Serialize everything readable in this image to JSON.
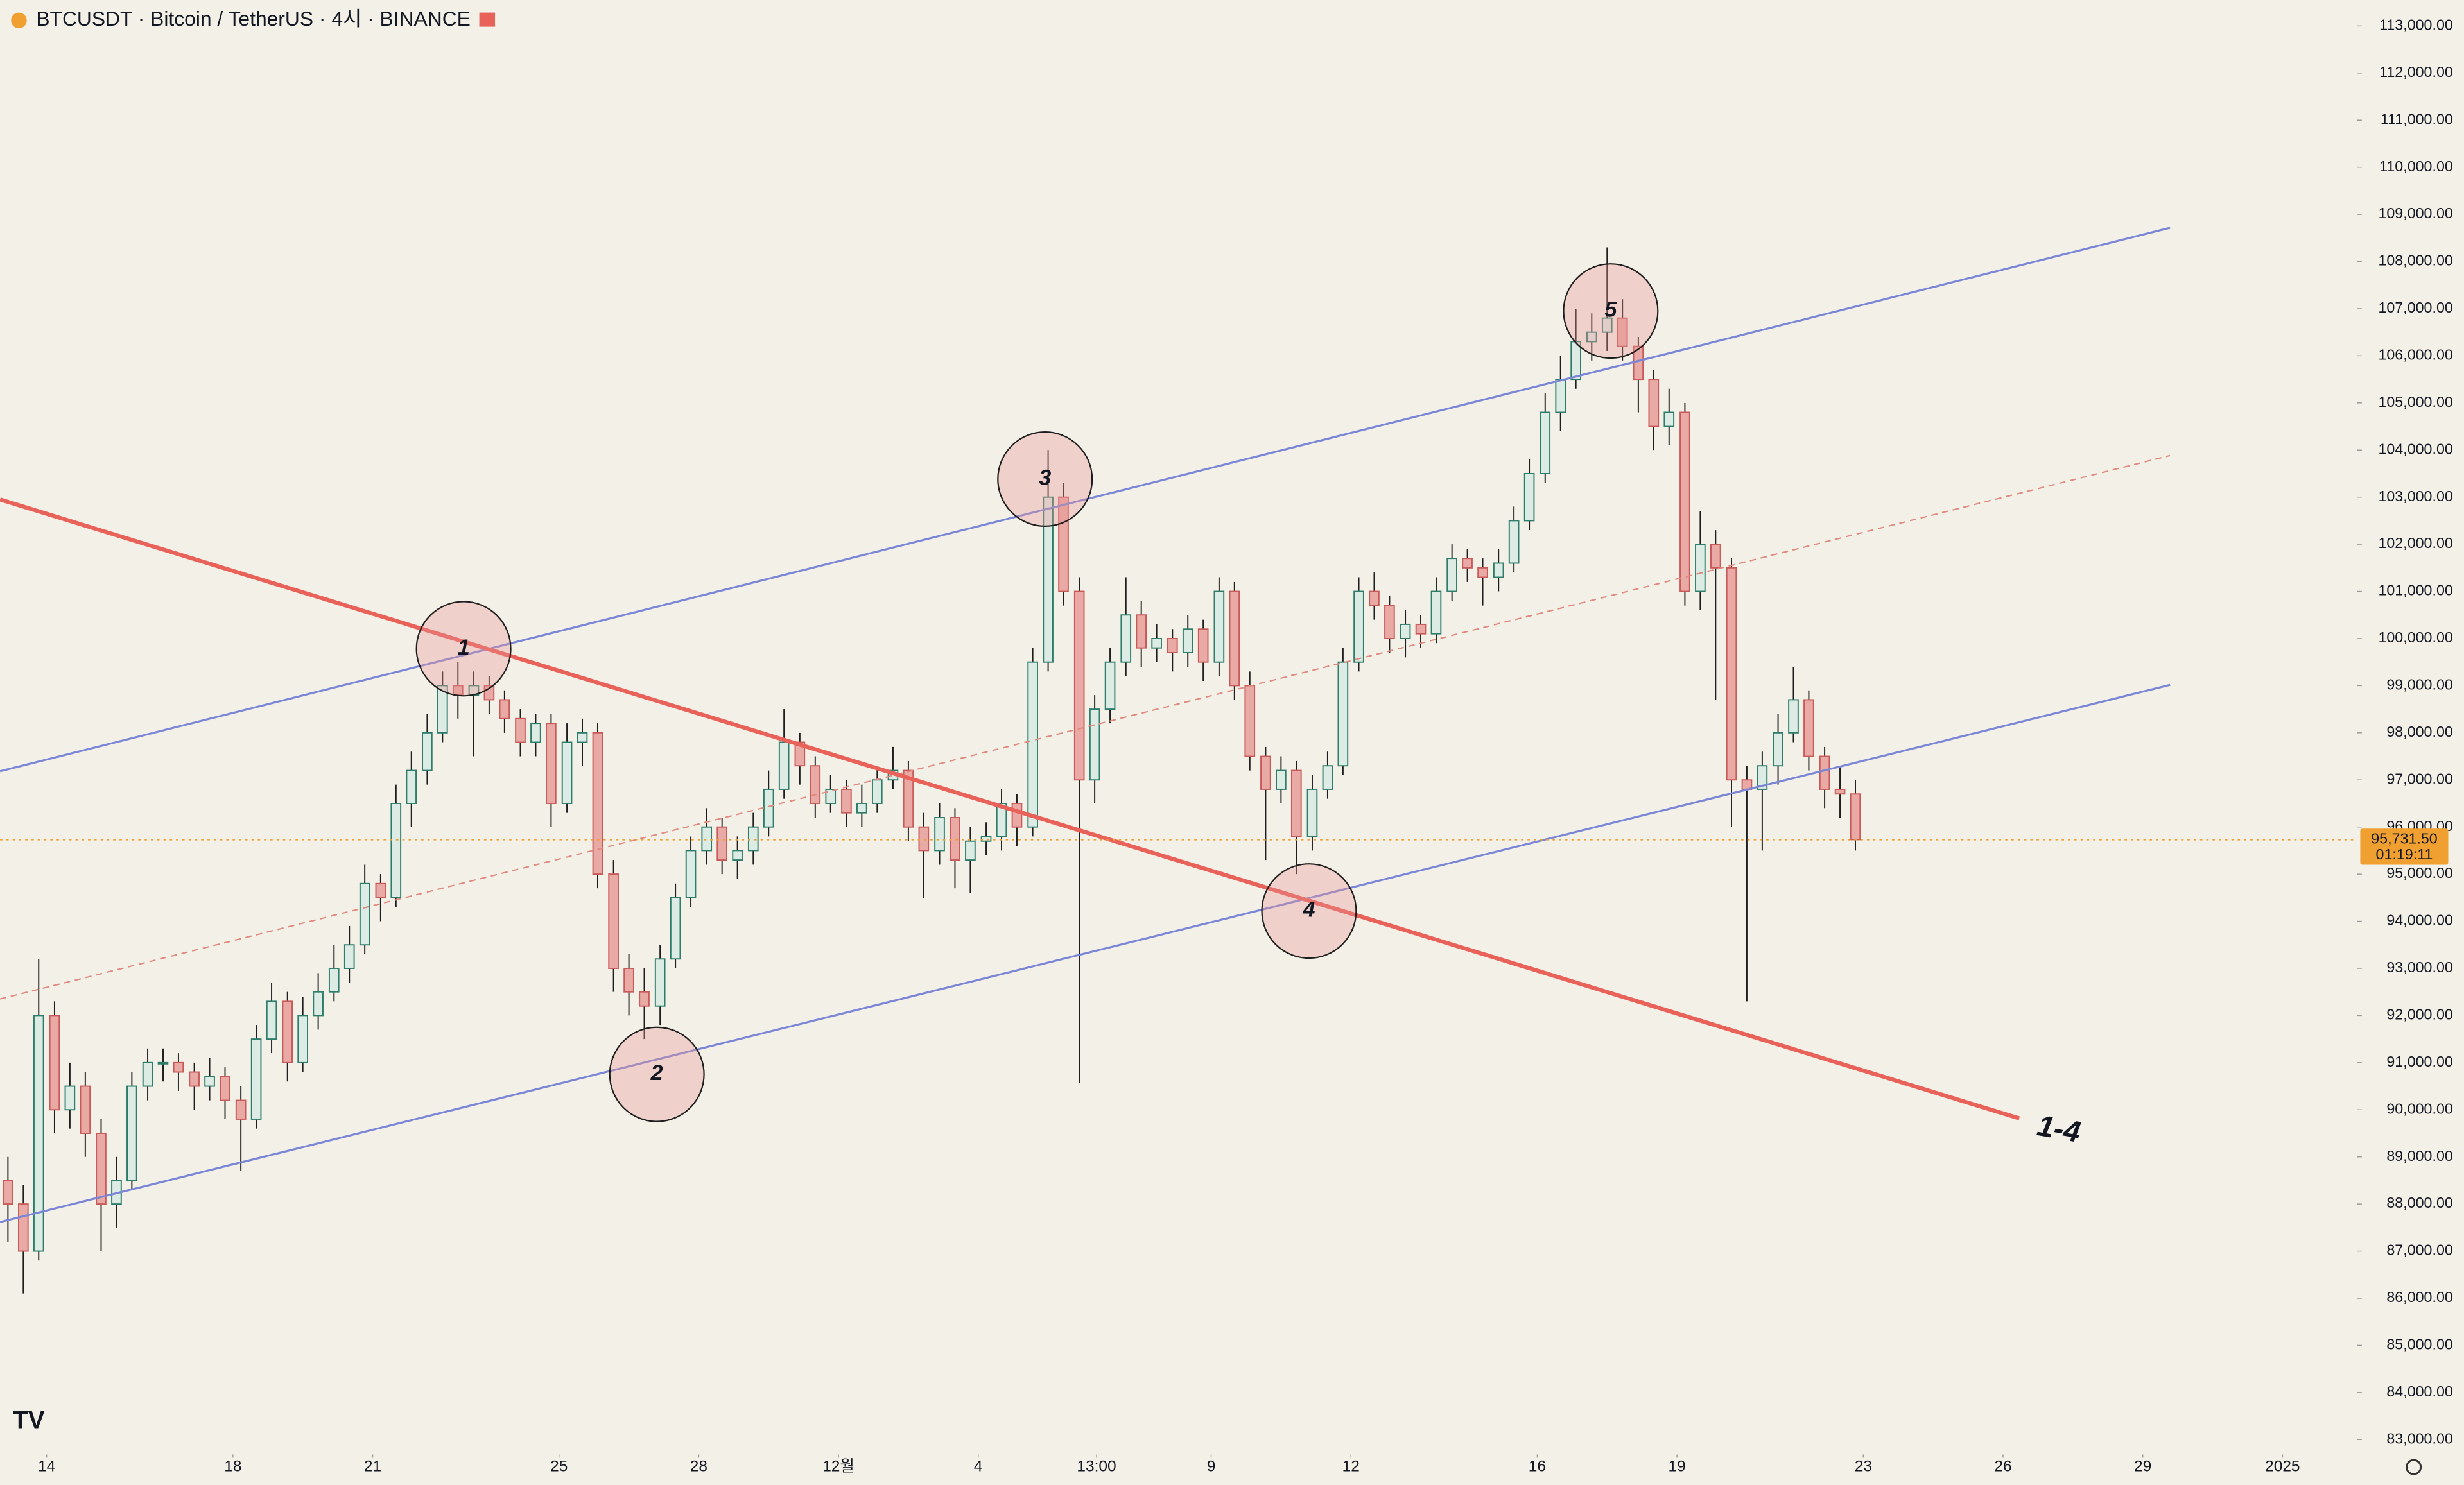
{
  "chart_data": {
    "type": "candlestick",
    "title": "BTCUSDT · Bitcoin / TetherUS · 4시 · BINANCE",
    "x": [
      0.17,
      0.5,
      0.83,
      1.17,
      1.5,
      1.83,
      2.17,
      2.5,
      2.83,
      3.17,
      3.5,
      3.83,
      4.17,
      4.5,
      4.83,
      5.17,
      5.5,
      5.83,
      6.17,
      6.5,
      6.83,
      7.17,
      7.5,
      7.83,
      8.17,
      8.5,
      8.83,
      9.17,
      9.5,
      9.83,
      10.17,
      10.5,
      10.83,
      11.17,
      11.5,
      11.83,
      12.17,
      12.5,
      12.83,
      13.17,
      13.5,
      13.83,
      14.17,
      14.5,
      14.83,
      15.17,
      15.5,
      15.83,
      16.17,
      16.5,
      16.83,
      17.17,
      17.5,
      17.83,
      18.17,
      18.5,
      18.83,
      19.17,
      19.5,
      19.83,
      20.17,
      20.5,
      20.83,
      21.17,
      21.5,
      21.83,
      22.17,
      22.5,
      22.83,
      23.17,
      23.5,
      23.83,
      24.17,
      24.5,
      24.83,
      25.17,
      25.5,
      25.83,
      26.17,
      26.5,
      26.83,
      27.17,
      27.5,
      27.83,
      28.17,
      28.5,
      28.83,
      29.17,
      29.5,
      29.83,
      30.17,
      30.5,
      30.83,
      31.17,
      31.5,
      31.83,
      32.17,
      32.5,
      32.83,
      33.17,
      33.5,
      33.83,
      34.17,
      34.5,
      34.83,
      35.17,
      35.5,
      35.83,
      36.17,
      36.5,
      36.83,
      37.17,
      37.5,
      37.83,
      38.17,
      38.5,
      38.83,
      39.17,
      39.5,
      39.83
    ],
    "open": [
      88500,
      88000,
      87000,
      92000,
      90000,
      90500,
      89500,
      88000,
      88500,
      90500,
      91000,
      91000,
      90800,
      90500,
      90700,
      90200,
      89800,
      91500,
      92300,
      91000,
      92000,
      92500,
      93000,
      93500,
      94800,
      94500,
      96500,
      97200,
      98000,
      99000,
      98800,
      99000,
      98700,
      98300,
      97800,
      98200,
      96500,
      97800,
      98000,
      95000,
      93000,
      92500,
      92200,
      93200,
      94500,
      95500,
      96000,
      95300,
      95500,
      96000,
      96800,
      97800,
      97300,
      96500,
      96800,
      96300,
      96500,
      97000,
      97200,
      96000,
      95500,
      96200,
      95300,
      95700,
      95800,
      96500,
      96000,
      99500,
      103000,
      101000,
      97000,
      98500,
      99500,
      100500,
      99800,
      100000,
      99700,
      100200,
      99500,
      101000,
      99000,
      97500,
      96800,
      97200,
      95800,
      96800,
      97300,
      99500,
      101000,
      100700,
      100000,
      100300,
      100100,
      101000,
      101700,
      101500,
      101300,
      101600,
      102500,
      103500,
      104800,
      105500,
      106300,
      106500,
      106800,
      106200,
      105500,
      104500,
      104800,
      101000,
      102000,
      101500,
      97000,
      96800,
      97300,
      98000,
      98700,
      97500,
      96800,
      96700
    ],
    "high": [
      89000,
      88400,
      93200,
      92300,
      91000,
      90800,
      89800,
      89000,
      90800,
      91300,
      91300,
      91200,
      91000,
      91100,
      90900,
      90500,
      91800,
      92700,
      92500,
      92400,
      92900,
      93500,
      93900,
      95200,
      95000,
      96900,
      97600,
      98400,
      99300,
      99500,
      99300,
      99200,
      98900,
      98500,
      98400,
      98400,
      98200,
      98300,
      98200,
      95300,
      93300,
      93000,
      93500,
      94800,
      95800,
      96400,
      96200,
      95800,
      96300,
      97200,
      98500,
      98000,
      97500,
      97100,
      97000,
      96900,
      97300,
      97700,
      97400,
      96300,
      96500,
      96400,
      96000,
      96100,
      96800,
      96700,
      99800,
      104000,
      103300,
      101300,
      98800,
      99800,
      101300,
      100800,
      100300,
      100200,
      100500,
      100400,
      101300,
      101200,
      99300,
      97700,
      97500,
      97400,
      97100,
      97600,
      99800,
      101300,
      101400,
      100900,
      100600,
      100500,
      101300,
      102000,
      101900,
      101700,
      101900,
      102800,
      103800,
      105200,
      106000,
      107000,
      106900,
      108300,
      107200,
      106400,
      105700,
      105300,
      105000,
      102700,
      102300,
      101700,
      97300,
      97600,
      98400,
      99400,
      98900,
      97700,
      97300,
      97000
    ],
    "low": [
      87200,
      86100,
      86800,
      89500,
      89600,
      89000,
      87000,
      87500,
      88300,
      90200,
      90600,
      90400,
      90000,
      90200,
      89800,
      88700,
      89600,
      91200,
      90600,
      90800,
      91700,
      92300,
      92700,
      93300,
      94000,
      94300,
      96000,
      96900,
      97800,
      98300,
      97500,
      98400,
      98000,
      97500,
      97500,
      96000,
      96300,
      97300,
      94700,
      92500,
      92000,
      91500,
      91800,
      93000,
      94300,
      95200,
      95000,
      94900,
      95200,
      95800,
      96600,
      96900,
      96200,
      96300,
      96000,
      96000,
      96300,
      96800,
      95700,
      94500,
      95200,
      94700,
      94600,
      95400,
      95500,
      95600,
      95800,
      99300,
      100700,
      90570,
      96500,
      98200,
      99200,
      99400,
      99500,
      99300,
      99400,
      99100,
      99200,
      98700,
      97200,
      95300,
      96500,
      95000,
      95500,
      96600,
      97100,
      99300,
      100400,
      99700,
      99600,
      99800,
      99900,
      100800,
      101200,
      100700,
      101000,
      101400,
      102300,
      103300,
      104400,
      105300,
      105900,
      106100,
      105900,
      104800,
      104000,
      104100,
      100700,
      100600,
      98700,
      96000,
      92300,
      95500,
      96900,
      97800,
      97200,
      96400,
      96200,
      95500
    ],
    "close": [
      88000,
      87000,
      92000,
      90000,
      90500,
      89500,
      88000,
      88500,
      90500,
      91000,
      91000,
      90800,
      90500,
      90700,
      90200,
      89800,
      91500,
      92300,
      91000,
      92000,
      92500,
      93000,
      93500,
      94800,
      94500,
      96500,
      97200,
      98000,
      99000,
      98800,
      99000,
      98700,
      98300,
      97800,
      98200,
      96500,
      97800,
      98000,
      95000,
      93000,
      92500,
      92200,
      93200,
      94500,
      95500,
      96000,
      95300,
      95500,
      96000,
      96800,
      97800,
      97300,
      96500,
      96800,
      96300,
      96500,
      97000,
      97200,
      96000,
      95500,
      96200,
      95300,
      95700,
      95800,
      96500,
      96000,
      99500,
      103000,
      101000,
      97000,
      98500,
      99500,
      100500,
      99800,
      100000,
      99700,
      100200,
      99500,
      101000,
      99000,
      97500,
      96800,
      97200,
      95800,
      96800,
      97300,
      99500,
      101000,
      100700,
      100000,
      100300,
      100100,
      101000,
      101700,
      101500,
      101300,
      101600,
      102500,
      103500,
      104800,
      105500,
      106300,
      106500,
      106800,
      106200,
      105500,
      104500,
      104800,
      101000,
      102000,
      101500,
      97000,
      96800,
      97300,
      98000,
      98700,
      97500,
      96800,
      96700,
      95731.5
    ],
    "up_color": "#2e7d6b",
    "down_color": "#c85a5a",
    "xlim": [
      0,
      50.5
    ],
    "xticks": [
      {
        "value": 1,
        "label": "14"
      },
      {
        "value": 5,
        "label": "18"
      },
      {
        "value": 8,
        "label": "21"
      },
      {
        "value": 12,
        "label": "25"
      },
      {
        "value": 15,
        "label": "28"
      },
      {
        "value": 18,
        "label": "12월"
      },
      {
        "value": 21,
        "label": "4"
      },
      {
        "value": 23.54,
        "label": "13:00"
      },
      {
        "value": 26,
        "label": "9"
      },
      {
        "value": 29,
        "label": "12"
      },
      {
        "value": 33,
        "label": "16"
      },
      {
        "value": 36,
        "label": "19"
      },
      {
        "value": 40,
        "label": "23"
      },
      {
        "value": 43,
        "label": "26"
      },
      {
        "value": 46,
        "label": "29"
      },
      {
        "value": 49,
        "label": "2025"
      }
    ],
    "ylim": [
      82750,
      113550
    ],
    "yticks": [
      {
        "value": 83000,
        "label": "83,000.00"
      },
      {
        "value": 84000,
        "label": "84,000.00"
      },
      {
        "value": 85000,
        "label": "85,000.00"
      },
      {
        "value": 86000,
        "label": "86,000.00"
      },
      {
        "value": 87000,
        "label": "87,000.00"
      },
      {
        "value": 88000,
        "label": "88,000.00"
      },
      {
        "value": 89000,
        "label": "89,000.00"
      },
      {
        "value": 90000,
        "label": "90,000.00"
      },
      {
        "value": 91000,
        "label": "91,000.00"
      },
      {
        "value": 92000,
        "label": "92,000.00"
      },
      {
        "value": 93000,
        "label": "93,000.00"
      },
      {
        "value": 94000,
        "label": "94,000.00"
      },
      {
        "value": 95000,
        "label": "95,000.00"
      },
      {
        "value": 96000,
        "label": "96,000.00"
      },
      {
        "value": 97000,
        "label": "97,000.00"
      },
      {
        "value": 98000,
        "label": "98,000.00"
      },
      {
        "value": 99000,
        "label": "99,000.00"
      },
      {
        "value": 100000,
        "label": "100,000.00"
      },
      {
        "value": 101000,
        "label": "101,000.00"
      },
      {
        "value": 102000,
        "label": "102,000.00"
      },
      {
        "value": 103000,
        "label": "103,000.00"
      },
      {
        "value": 104000,
        "label": "104,000.00"
      },
      {
        "value": 105000,
        "label": "105,000.00"
      },
      {
        "value": 106000,
        "label": "106,000.00"
      },
      {
        "value": 107000,
        "label": "107,000.00"
      },
      {
        "value": 108000,
        "label": "108,000.00"
      },
      {
        "value": 109000,
        "label": "109,000.00"
      },
      {
        "value": 110000,
        "label": "110,000.00"
      },
      {
        "value": 111000,
        "label": "111,000.00"
      },
      {
        "value": 112000,
        "label": "112,000.00"
      },
      {
        "value": 113000,
        "label": "113,000.00"
      }
    ],
    "last_price": {
      "value": 95731.5,
      "label": "95,731.50"
    },
    "countdown": "01:19:11",
    "annotations": [
      "1",
      "2",
      "3",
      "4",
      "5",
      "1-4"
    ]
  }
}
